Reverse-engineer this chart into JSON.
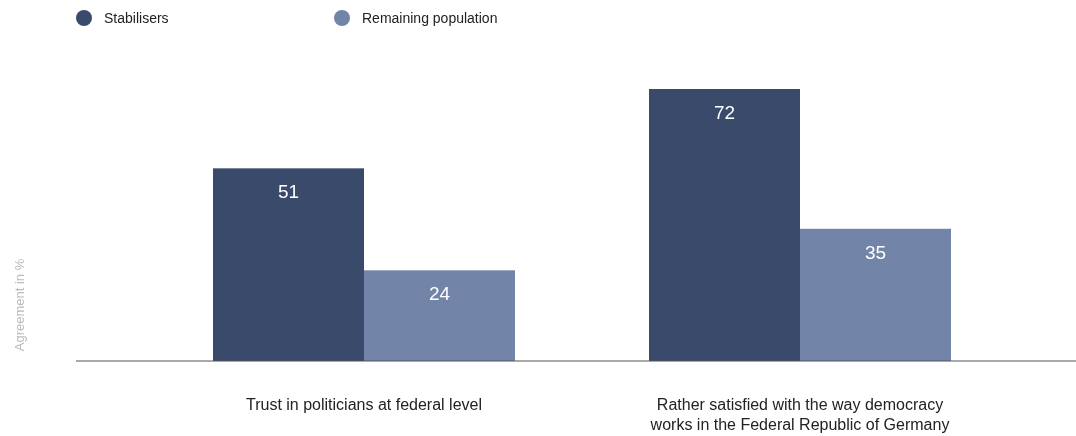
{
  "chart_data": {
    "type": "bar",
    "ylabel": "Agreement in %",
    "categories": [
      "Trust in politicians at federal level",
      "Rather satisfied with the way democracy works in the Federal Republic of Germany"
    ],
    "series": [
      {
        "name": "Stabilisers",
        "color": "#3a4a6b",
        "values": [
          51,
          72
        ]
      },
      {
        "name": "Remaining population",
        "color": "#7284a8",
        "values": [
          24,
          35
        ]
      }
    ],
    "data_labels": true,
    "legend": "top left",
    "grid": false
  }
}
